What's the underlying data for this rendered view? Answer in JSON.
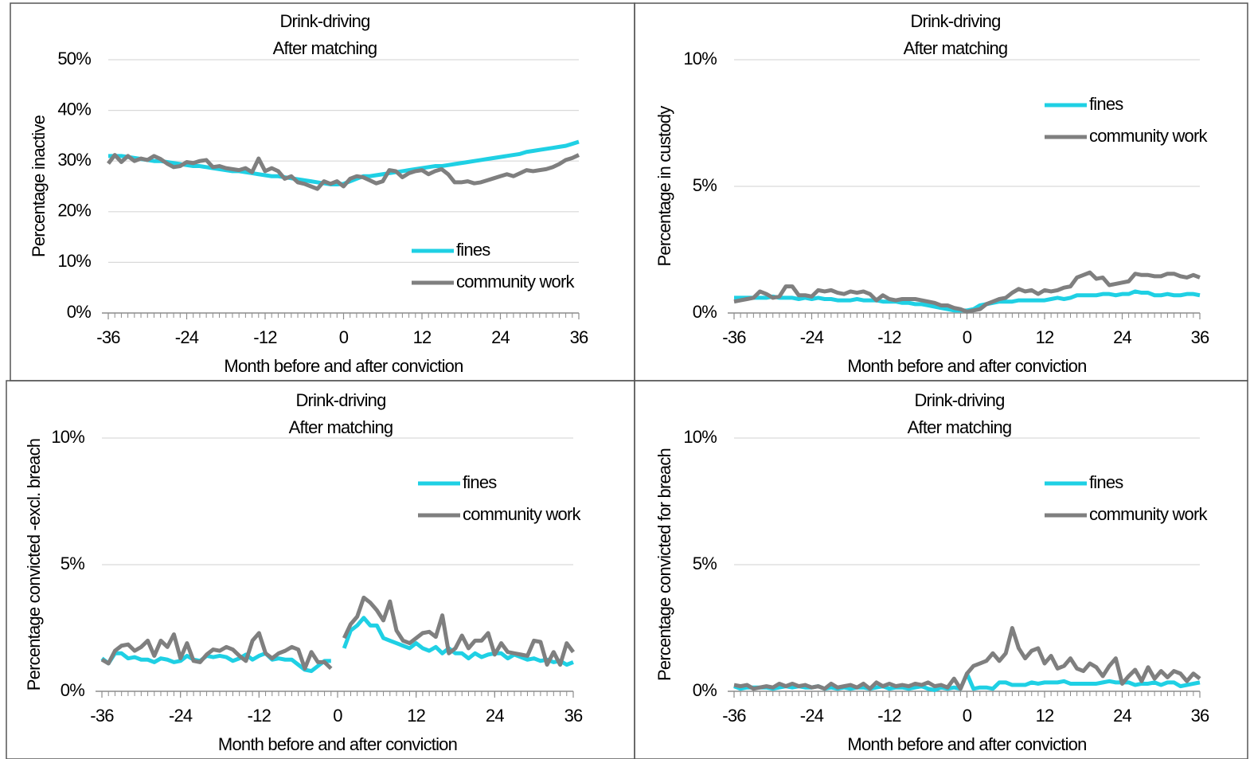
{
  "chart_data": [
    {
      "type": "line",
      "title": "Drink-driving",
      "subtitle": "After matching",
      "y_label": "Percentage inactive",
      "x_label": "Month before and after conviction",
      "x": [
        -36,
        -35,
        -34,
        -33,
        -32,
        -31,
        -30,
        -29,
        -28,
        -27,
        -26,
        -25,
        -24,
        -23,
        -22,
        -21,
        -20,
        -19,
        -18,
        -17,
        -16,
        -15,
        -14,
        -13,
        -12,
        -11,
        -10,
        -9,
        -8,
        -7,
        -6,
        -5,
        -4,
        -3,
        -2,
        -1,
        0,
        1,
        2,
        3,
        4,
        5,
        6,
        7,
        8,
        9,
        10,
        11,
        12,
        13,
        14,
        15,
        16,
        17,
        18,
        19,
        20,
        21,
        22,
        23,
        24,
        25,
        26,
        27,
        28,
        29,
        30,
        31,
        32,
        33,
        34,
        35,
        36
      ],
      "xlim": [
        -36,
        36
      ],
      "xticks": [
        -36,
        -24,
        -12,
        0,
        12,
        24,
        36
      ],
      "ylim": [
        0,
        50
      ],
      "yticks": [
        {
          "value": 0,
          "label": "0%"
        },
        {
          "value": 10,
          "label": "10%"
        },
        {
          "value": 20,
          "label": "20%"
        },
        {
          "value": 30,
          "label": "30%"
        },
        {
          "value": 40,
          "label": "40%"
        },
        {
          "value": 50,
          "label": "50%"
        }
      ],
      "grid": true,
      "legend": "lower right",
      "series": [
        {
          "name": "fines",
          "color": "#1fd0e4",
          "values": [
            31,
            31,
            31,
            30.8,
            30.6,
            30.4,
            30.2,
            30,
            30,
            29.8,
            29.6,
            29.4,
            29.2,
            29,
            29,
            28.8,
            28.6,
            28.4,
            28.2,
            28,
            28,
            27.8,
            27.6,
            27.4,
            27.2,
            27,
            27,
            26.8,
            26.6,
            26.4,
            26.2,
            26,
            25.8,
            25.6,
            25.4,
            25.4,
            25.5,
            26,
            26.5,
            27,
            27,
            27.2,
            27.4,
            27.6,
            27.8,
            28,
            28.2,
            28.4,
            28.6,
            28.8,
            29,
            29,
            29.2,
            29.4,
            29.6,
            29.8,
            30,
            30.2,
            30.4,
            30.6,
            30.8,
            31,
            31.2,
            31.4,
            31.8,
            32,
            32.2,
            32.4,
            32.6,
            32.8,
            33,
            33.4,
            33.8
          ]
        },
        {
          "name": "community work",
          "color": "#7f7f7f",
          "values": [
            29.5,
            31.2,
            29.8,
            31,
            30,
            30.5,
            30.2,
            31,
            30.4,
            29.5,
            28.8,
            29,
            29.8,
            29.6,
            30,
            30.2,
            28.8,
            29,
            28.6,
            28.4,
            28.2,
            28.6,
            27.8,
            30.5,
            28,
            28.6,
            28,
            26.5,
            27,
            25.8,
            25.5,
            25,
            24.5,
            26,
            25.5,
            26,
            25,
            26.5,
            27,
            26.8,
            26.2,
            25.6,
            26,
            28.2,
            28,
            26.8,
            27.6,
            28,
            28.2,
            27.4,
            28,
            28.4,
            27.4,
            25.8,
            25.8,
            26,
            25.6,
            25.8,
            26.2,
            26.6,
            27,
            27.4,
            27,
            27.6,
            28.2,
            28,
            28.2,
            28.4,
            28.8,
            29.4,
            30.2,
            30.6,
            31.2
          ]
        }
      ]
    },
    {
      "type": "line",
      "title": "Drink-driving",
      "subtitle": "After matching",
      "y_label": "Percentage in custody",
      "x_label": "Month before and after conviction",
      "x": [
        -36,
        -35,
        -34,
        -33,
        -32,
        -31,
        -30,
        -29,
        -28,
        -27,
        -26,
        -25,
        -24,
        -23,
        -22,
        -21,
        -20,
        -19,
        -18,
        -17,
        -16,
        -15,
        -14,
        -13,
        -12,
        -11,
        -10,
        -9,
        -8,
        -7,
        -6,
        -5,
        -4,
        -3,
        -2,
        -1,
        0,
        1,
        2,
        3,
        4,
        5,
        6,
        7,
        8,
        9,
        10,
        11,
        12,
        13,
        14,
        15,
        16,
        17,
        18,
        19,
        20,
        21,
        22,
        23,
        24,
        25,
        26,
        27,
        28,
        29,
        30,
        31,
        32,
        33,
        34,
        35,
        36
      ],
      "xlim": [
        -36,
        36
      ],
      "xticks": [
        -36,
        -24,
        -12,
        0,
        12,
        24,
        36
      ],
      "ylim": [
        0,
        10
      ],
      "yticks": [
        {
          "value": 0,
          "label": "0%"
        },
        {
          "value": 5,
          "label": "5%"
        },
        {
          "value": 10,
          "label": "10%"
        }
      ],
      "grid": true,
      "legend": "upper right",
      "series": [
        {
          "name": "fines",
          "color": "#1fd0e4",
          "values": [
            0.6,
            0.6,
            0.6,
            0.6,
            0.6,
            0.6,
            0.65,
            0.6,
            0.6,
            0.6,
            0.55,
            0.6,
            0.55,
            0.6,
            0.55,
            0.55,
            0.5,
            0.5,
            0.5,
            0.55,
            0.5,
            0.5,
            0.5,
            0.45,
            0.45,
            0.45,
            0.4,
            0.4,
            0.35,
            0.35,
            0.3,
            0.25,
            0.2,
            0.15,
            0.1,
            0.1,
            0.1,
            0.15,
            0.3,
            0.35,
            0.4,
            0.45,
            0.45,
            0.45,
            0.5,
            0.5,
            0.5,
            0.5,
            0.5,
            0.55,
            0.6,
            0.55,
            0.6,
            0.7,
            0.7,
            0.7,
            0.7,
            0.75,
            0.75,
            0.7,
            0.75,
            0.75,
            0.85,
            0.8,
            0.8,
            0.7,
            0.7,
            0.75,
            0.7,
            0.7,
            0.75,
            0.75,
            0.7
          ]
        },
        {
          "name": "community work",
          "color": "#7f7f7f",
          "values": [
            0.45,
            0.5,
            0.55,
            0.6,
            0.85,
            0.75,
            0.6,
            0.65,
            1.05,
            1.05,
            0.7,
            0.7,
            0.65,
            0.9,
            0.85,
            0.9,
            0.8,
            0.75,
            0.85,
            0.8,
            0.85,
            0.75,
            0.5,
            0.7,
            0.55,
            0.5,
            0.55,
            0.55,
            0.55,
            0.5,
            0.45,
            0.4,
            0.3,
            0.3,
            0.2,
            0.15,
            0.05,
            0.1,
            0.15,
            0.35,
            0.45,
            0.55,
            0.6,
            0.8,
            0.95,
            0.85,
            0.9,
            0.75,
            0.9,
            0.85,
            0.9,
            1.0,
            1.05,
            1.4,
            1.5,
            1.6,
            1.35,
            1.4,
            1.1,
            1.15,
            1.2,
            1.25,
            1.55,
            1.5,
            1.5,
            1.45,
            1.45,
            1.55,
            1.55,
            1.45,
            1.4,
            1.5,
            1.4
          ]
        }
      ]
    },
    {
      "type": "line",
      "title": "Drink-driving",
      "subtitle": "After matching",
      "y_label": "Percentage convicted -excl. breach",
      "x_label": "Month before and after conviction",
      "x": [
        -36,
        -35,
        -34,
        -33,
        -32,
        -31,
        -30,
        -29,
        -28,
        -27,
        -26,
        -25,
        -24,
        -23,
        -22,
        -21,
        -20,
        -19,
        -18,
        -17,
        -16,
        -15,
        -14,
        -13,
        -12,
        -11,
        -10,
        -9,
        -8,
        -7,
        -6,
        -5,
        -4,
        -3,
        -2,
        -1,
        0,
        1,
        2,
        3,
        4,
        5,
        6,
        7,
        8,
        9,
        10,
        11,
        12,
        13,
        14,
        15,
        16,
        17,
        18,
        19,
        20,
        21,
        22,
        23,
        24,
        25,
        26,
        27,
        28,
        29,
        30,
        31,
        32,
        33,
        34,
        35,
        36
      ],
      "xlim": [
        -36,
        36
      ],
      "xticks": [
        -36,
        -24,
        -12,
        0,
        12,
        24,
        36
      ],
      "ylim": [
        0,
        10
      ],
      "yticks": [
        {
          "value": 0,
          "label": "0%"
        },
        {
          "value": 5,
          "label": "5%"
        },
        {
          "value": 10,
          "label": "10%"
        }
      ],
      "grid": true,
      "legend": "upper right",
      "series": [
        {
          "name": "fines",
          "color": "#1fd0e4",
          "values": [
            1.3,
            1.1,
            1.5,
            1.5,
            1.3,
            1.35,
            1.25,
            1.25,
            1.15,
            1.3,
            1.25,
            1.15,
            1.2,
            1.4,
            1.25,
            1.2,
            1.4,
            1.35,
            1.4,
            1.35,
            1.2,
            1.3,
            1.45,
            1.25,
            1.4,
            1.5,
            1.25,
            1.3,
            1.25,
            1.25,
            1.05,
            0.85,
            0.8,
            1.0,
            1.2,
            1.2,
            null,
            1.7,
            2.4,
            2.6,
            2.9,
            2.6,
            2.6,
            2.1,
            2.0,
            1.9,
            1.8,
            1.7,
            1.9,
            1.7,
            1.6,
            1.75,
            1.5,
            1.7,
            1.5,
            1.5,
            1.3,
            1.5,
            1.35,
            1.45,
            1.5,
            1.5,
            1.3,
            1.45,
            1.35,
            1.25,
            1.3,
            1.2,
            1.25,
            1.15,
            1.2,
            1.05,
            1.15
          ]
        },
        {
          "name": "community work",
          "color": "#7f7f7f",
          "values": [
            1.25,
            1.1,
            1.6,
            1.8,
            1.85,
            1.6,
            1.75,
            2.0,
            1.4,
            2.0,
            1.75,
            2.25,
            1.3,
            1.9,
            1.2,
            1.15,
            1.45,
            1.65,
            1.6,
            1.75,
            1.65,
            1.4,
            1.2,
            2.0,
            2.3,
            1.5,
            1.3,
            1.5,
            1.6,
            1.75,
            1.65,
            0.9,
            1.55,
            1.15,
            1.15,
            0.9,
            null,
            2.1,
            2.65,
            2.95,
            3.7,
            3.5,
            3.2,
            2.8,
            3.55,
            2.4,
            2.0,
            1.9,
            2.1,
            2.3,
            2.35,
            2.15,
            3.0,
            1.5,
            1.7,
            2.2,
            1.7,
            2.0,
            2.0,
            2.3,
            1.45,
            1.9,
            1.55,
            1.5,
            1.45,
            1.4,
            2.0,
            1.95,
            1.05,
            1.55,
            1.05,
            1.9,
            1.55
          ]
        }
      ]
    },
    {
      "type": "line",
      "title": "Drink-driving",
      "subtitle": "After matching",
      "y_label": "Percentage convicted  for breach",
      "x_label": "Month before and after conviction",
      "x": [
        -36,
        -35,
        -34,
        -33,
        -32,
        -31,
        -30,
        -29,
        -28,
        -27,
        -26,
        -25,
        -24,
        -23,
        -22,
        -21,
        -20,
        -19,
        -18,
        -17,
        -16,
        -15,
        -14,
        -13,
        -12,
        -11,
        -10,
        -9,
        -8,
        -7,
        -6,
        -5,
        -4,
        -3,
        -2,
        -1,
        0,
        1,
        2,
        3,
        4,
        5,
        6,
        7,
        8,
        9,
        10,
        11,
        12,
        13,
        14,
        15,
        16,
        17,
        18,
        19,
        20,
        21,
        22,
        23,
        24,
        25,
        26,
        27,
        28,
        29,
        30,
        31,
        32,
        33,
        34,
        35,
        36
      ],
      "xlim": [
        -36,
        36
      ],
      "xticks": [
        -36,
        -24,
        -12,
        0,
        12,
        24,
        36
      ],
      "ylim": [
        0,
        10
      ],
      "yticks": [
        {
          "value": 0,
          "label": "0%"
        },
        {
          "value": 5,
          "label": "5%"
        },
        {
          "value": 10,
          "label": "10%"
        }
      ],
      "grid": true,
      "legend": "upper right",
      "series": [
        {
          "name": "fines",
          "color": "#1fd0e4",
          "values": [
            0.2,
            0.1,
            0.15,
            0.15,
            0.15,
            0.15,
            0.1,
            0.15,
            0.2,
            0.15,
            0.2,
            0.15,
            0.15,
            0.2,
            0.1,
            0.15,
            0.1,
            0.15,
            0.1,
            0.15,
            0.15,
            0.1,
            0.15,
            0.2,
            0.1,
            0.15,
            0.15,
            0.1,
            0.15,
            0.2,
            0.1,
            0.05,
            0.15,
            0.1,
            0.15,
            0.1,
            0.7,
            0.1,
            0.15,
            0.15,
            0.1,
            0.35,
            0.35,
            0.25,
            0.25,
            0.25,
            0.35,
            0.3,
            0.35,
            0.35,
            0.35,
            0.4,
            0.3,
            0.3,
            0.3,
            0.3,
            0.3,
            0.35,
            0.4,
            0.35,
            0.35,
            0.35,
            0.25,
            0.3,
            0.3,
            0.35,
            0.25,
            0.35,
            0.35,
            0.2,
            0.25,
            0.3,
            0.35
          ]
        },
        {
          "name": "community work",
          "color": "#7f7f7f",
          "values": [
            0.25,
            0.2,
            0.25,
            0.1,
            0.15,
            0.2,
            0.15,
            0.3,
            0.2,
            0.3,
            0.2,
            0.25,
            0.15,
            0.2,
            0.1,
            0.3,
            0.15,
            0.2,
            0.25,
            0.15,
            0.3,
            0.1,
            0.35,
            0.2,
            0.3,
            0.2,
            0.25,
            0.2,
            0.3,
            0.25,
            0.35,
            0.2,
            0.25,
            0.15,
            0.5,
            0.1,
            0.7,
            1.0,
            1.1,
            1.2,
            1.5,
            1.2,
            1.5,
            2.5,
            1.7,
            1.3,
            1.6,
            1.7,
            1.1,
            1.4,
            0.9,
            1.0,
            1.3,
            0.9,
            0.8,
            1.1,
            0.95,
            0.6,
            1.0,
            1.3,
            0.3,
            0.6,
            0.85,
            0.4,
            0.95,
            0.5,
            0.8,
            0.55,
            0.8,
            0.7,
            0.4,
            0.7,
            0.5
          ]
        }
      ]
    }
  ]
}
